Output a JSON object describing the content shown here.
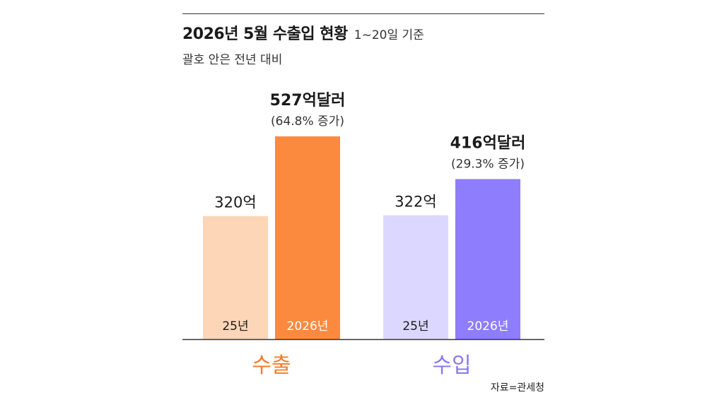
{
  "chart_data": {
    "type": "bar",
    "title": "2026년 5월 수출입 현황",
    "title_note": "1~20일 기준",
    "subtitle": "괄호 안은 전년 대비",
    "source": "자료=관세청",
    "unit": "억달러",
    "categories": [
      "수출",
      "수입"
    ],
    "category_colors": [
      "#f57c2a",
      "#8b78f0"
    ],
    "groups": [
      {
        "category": "수출",
        "bars": [
          {
            "label": "25년",
            "value": 320,
            "value_label": "320억",
            "color": "#fdd6b7",
            "highlight": false
          },
          {
            "label": "2026년",
            "value": 527,
            "value_label": "527억달러",
            "change_label": "(64.8% 증가)",
            "color": "#fb8a3f",
            "highlight": true
          }
        ]
      },
      {
        "category": "수입",
        "bars": [
          {
            "label": "25년",
            "value": 322,
            "value_label": "322억",
            "color": "#dcd7ff",
            "highlight": false
          },
          {
            "label": "2026년",
            "value": 416,
            "value_label": "416억달러",
            "change_label": "(29.3% 증가)",
            "color": "#8e7dfc",
            "highlight": true
          }
        ]
      }
    ],
    "ylim": [
      0,
      527
    ],
    "grid": false,
    "legend": "none"
  }
}
